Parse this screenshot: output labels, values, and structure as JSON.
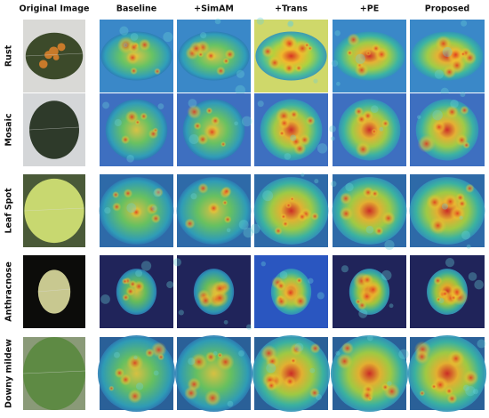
{
  "column_headers": [
    "Original Image",
    "Baseline",
    "+SimAM",
    "+Trans",
    "+PE",
    "Proposed"
  ],
  "row_labels": [
    "Rust",
    "Mosaic",
    "Leaf Spot",
    "Anthracnose",
    "Downy mildew"
  ]
}
